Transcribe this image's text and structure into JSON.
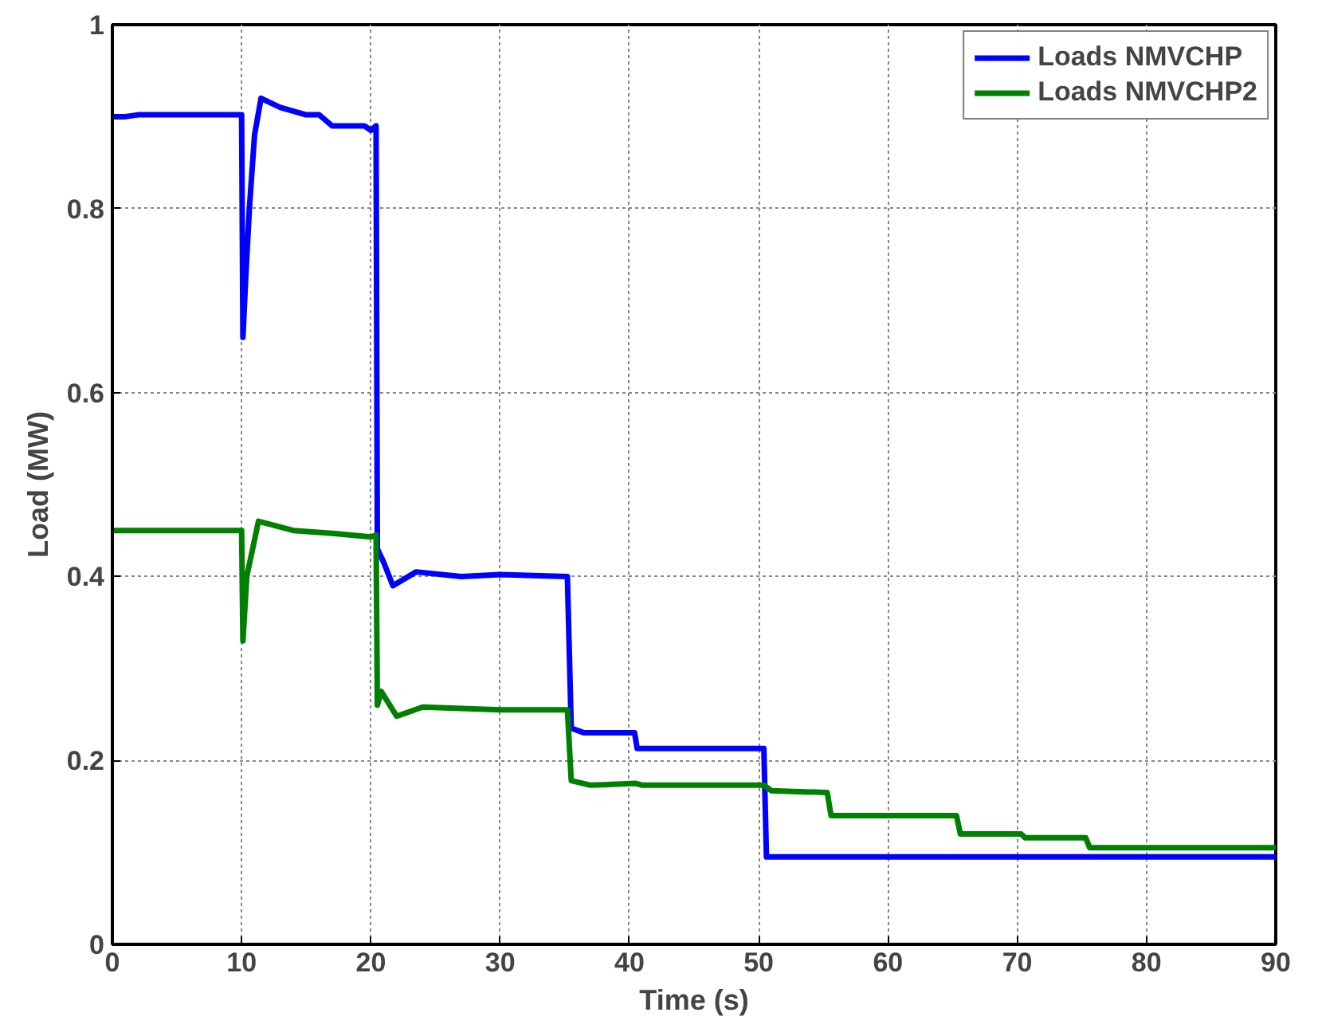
{
  "chart_data": {
    "type": "line",
    "xlabel": "Time (s)",
    "ylabel": "Load (MW)",
    "xlim": [
      0,
      90
    ],
    "ylim": [
      0,
      1
    ],
    "xticks": [
      0,
      10,
      20,
      30,
      40,
      50,
      60,
      70,
      80,
      90
    ],
    "yticks": [
      0,
      0.2,
      0.4,
      0.6,
      0.8,
      1
    ],
    "grid": true,
    "legend": "top right",
    "line_style": "solid",
    "marker": "none",
    "series": [
      {
        "name": "Loads NMVCHP",
        "color": "#0000ff",
        "x": [
          0,
          1,
          2,
          10,
          10.1,
          10.3,
          10.6,
          11,
          11.5,
          13,
          15,
          16,
          17,
          19.5,
          20,
          20.4,
          20.5,
          21,
          21.7,
          23.5,
          27,
          30,
          35.2,
          35.5,
          36.5,
          40.4,
          40.6,
          50.4,
          50.6,
          90
        ],
        "values": [
          0.9,
          0.9,
          0.902,
          0.902,
          0.66,
          0.72,
          0.8,
          0.88,
          0.92,
          0.91,
          0.902,
          0.902,
          0.89,
          0.89,
          0.885,
          0.89,
          0.43,
          0.415,
          0.39,
          0.405,
          0.4,
          0.402,
          0.4,
          0.235,
          0.23,
          0.23,
          0.213,
          0.213,
          0.095,
          0.095
        ]
      },
      {
        "name": "Loads NMVCHP2",
        "color": "#008000",
        "x": [
          0,
          10,
          10.1,
          10.4,
          11.3,
          14,
          17,
          20,
          20.4,
          20.5,
          20.8,
          22,
          24,
          30,
          35.2,
          35.5,
          37,
          40.5,
          41,
          50.4,
          51,
          55.3,
          55.6,
          65.3,
          65.6,
          70.3,
          70.6,
          75.3,
          75.6,
          90
        ],
        "values": [
          0.45,
          0.45,
          0.33,
          0.4,
          0.46,
          0.45,
          0.447,
          0.443,
          0.445,
          0.26,
          0.275,
          0.248,
          0.258,
          0.255,
          0.255,
          0.178,
          0.173,
          0.175,
          0.173,
          0.173,
          0.167,
          0.165,
          0.14,
          0.14,
          0.12,
          0.12,
          0.116,
          0.116,
          0.105,
          0.105
        ]
      }
    ]
  }
}
